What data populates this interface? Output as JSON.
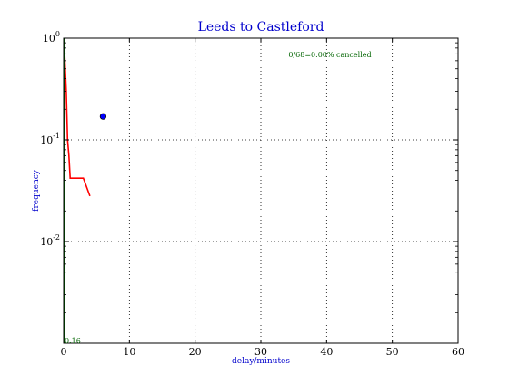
{
  "chart_data": {
    "type": "line",
    "title": "Leeds to Castleford",
    "xlabel": "delay/minutes",
    "ylabel": "frequency",
    "xlim": [
      0,
      60
    ],
    "ylim": [
      0.001,
      1
    ],
    "y_scale": "log",
    "grid": true,
    "x_ticks": [
      "0",
      "10",
      "20",
      "30",
      "40",
      "50",
      "60"
    ],
    "y_ticks": [
      {
        "base": "10",
        "exp": "0"
      },
      {
        "base": "10",
        "exp": "-1"
      },
      {
        "base": "10",
        "exp": "-2"
      }
    ],
    "series": [
      {
        "color": "#ff0000",
        "points": [
          [
            0.05,
            1.0
          ],
          [
            0.2,
            0.6
          ],
          [
            0.4,
            0.3
          ],
          [
            0.6,
            0.1
          ],
          [
            0.8,
            0.07
          ],
          [
            1.0,
            0.042
          ],
          [
            3.0,
            0.042
          ],
          [
            4.0,
            0.028
          ]
        ]
      },
      {
        "color": "#006400",
        "points": [
          [
            0.1,
            1.0
          ],
          [
            0.1,
            0.001
          ]
        ]
      }
    ],
    "markers": [
      {
        "x": 6,
        "y": 0.17,
        "color": "#0000ff"
      }
    ],
    "annotations": {
      "cancelled": "0/68=0.00% cancelled",
      "bottom_value": "0.16"
    },
    "colors": {
      "title": "#0000cc",
      "axis_labels": "#0000cc",
      "annotations": "#006400"
    }
  }
}
